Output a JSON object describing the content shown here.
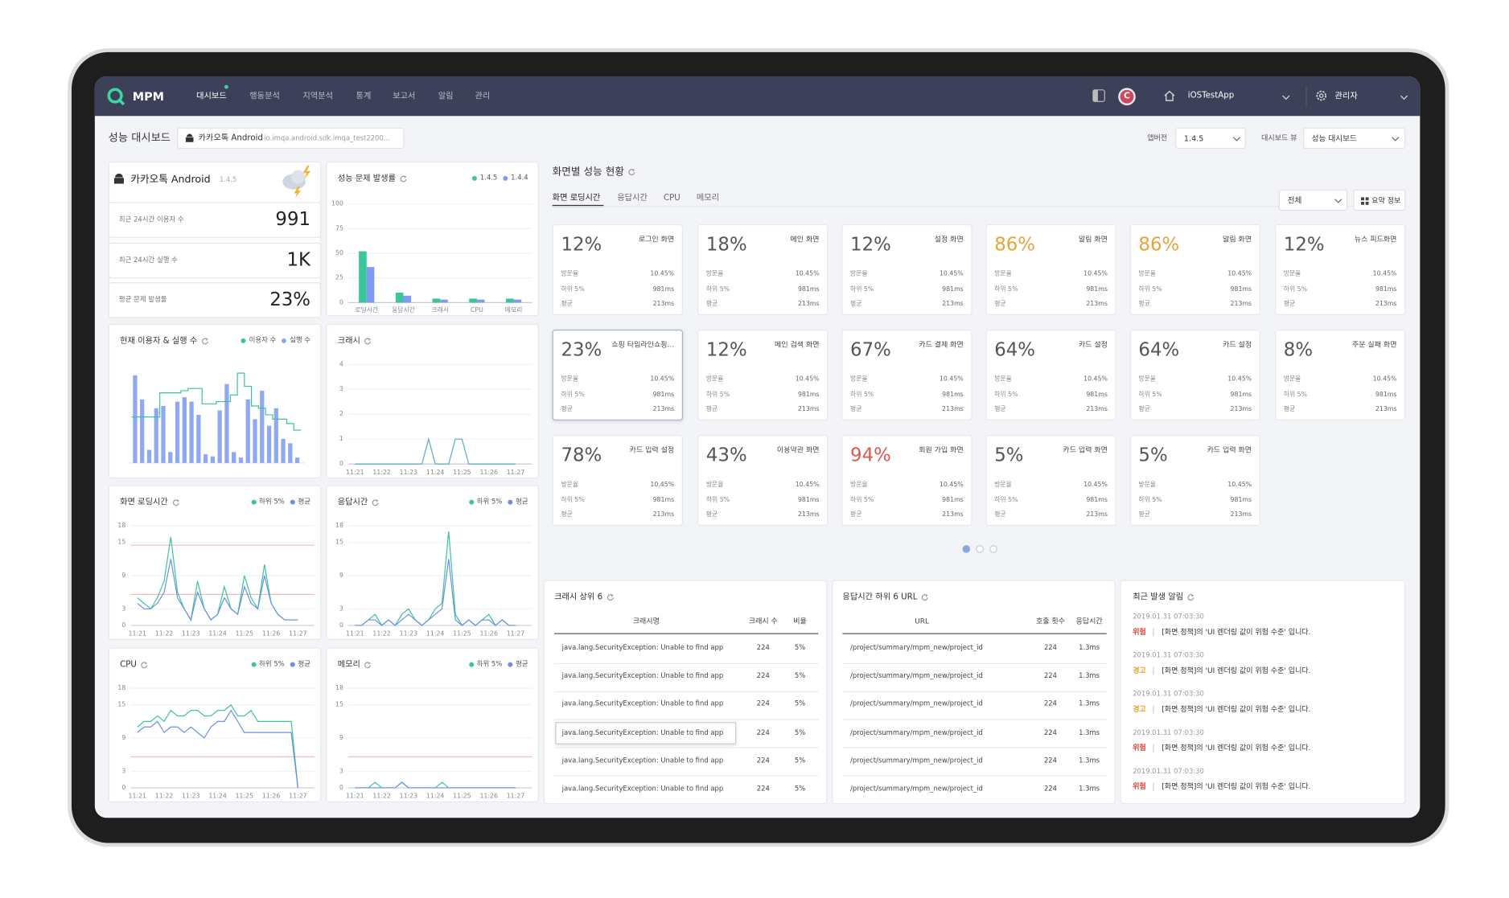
{
  "nav": {
    "logo": "MPM",
    "menu": [
      "대시보드",
      "행동분석",
      "지역분석",
      "통계",
      "보고서",
      "알림",
      "관리"
    ],
    "avatar": "C",
    "app": "iOSTestApp",
    "user": "관리자"
  },
  "header": {
    "title": "성능 대시보드",
    "app_chip": "카카오톡 Android",
    "package": "io.imqa.android.sdk.imqa_test2200...",
    "version_label": "앱버전",
    "version": "1.4.5",
    "view_label": "대시보드 뷰",
    "view": "성능 대시보드"
  },
  "summary": {
    "app": "카카오톡 Android",
    "version": "1.4.5",
    "stats": [
      {
        "label": "최근 24시간 이용자 수",
        "value": "991"
      },
      {
        "label": "최근 24시간 실행 수",
        "value": "1K"
      },
      {
        "label": "평균 문제 발생률",
        "value": "23%"
      }
    ]
  },
  "chart_data": [
    {
      "type": "bar",
      "title": "성능 문제 발생률",
      "categories": [
        "로딩시간",
        "응답시간",
        "크래시",
        "CPU",
        "메모리"
      ],
      "series": [
        {
          "name": "1.4.5",
          "color": "#3cc49a",
          "values": [
            52,
            10,
            4,
            4,
            4
          ]
        },
        {
          "name": "1.4.4",
          "color": "#7f9cf0",
          "values": [
            36,
            7,
            3,
            3,
            3
          ]
        }
      ],
      "ylim": [
        0,
        100
      ],
      "yticks": [
        0,
        25,
        50,
        75,
        100
      ],
      "grid": true
    },
    {
      "type": "combo",
      "title": "현재 이용자 & 실행 수",
      "series": [
        {
          "name": "이용자 수",
          "color": "#3cc49a",
          "kind": "line",
          "values": [
            42,
            42,
            42,
            42,
            64,
            64,
            64,
            66,
            68,
            68,
            54,
            54,
            56,
            56,
            62,
            82,
            70,
            52,
            50,
            44,
            40,
            40,
            36,
            30
          ]
        },
        {
          "name": "실행 수",
          "color": "#8fa8f2",
          "kind": "bar",
          "values": [
            80,
            58,
            12,
            50,
            52,
            10,
            56,
            60,
            56,
            44,
            8,
            6,
            48,
            72,
            10,
            5,
            58,
            40,
            66,
            34,
            50,
            22,
            18,
            5
          ]
        }
      ]
    },
    {
      "type": "line",
      "title": "크래시",
      "categories": [
        "11:21",
        null,
        null,
        null,
        "11:22",
        null,
        null,
        null,
        "11:23",
        null,
        null,
        null,
        "11:24",
        null,
        null,
        null,
        "11:25",
        null,
        null,
        null,
        "11:26",
        null,
        null,
        null,
        "11:27"
      ],
      "series": [
        {
          "color": "#5aa9c8",
          "values": [
            0,
            0,
            0,
            0,
            0,
            0,
            0,
            0,
            0,
            0,
            0,
            1,
            0,
            0,
            0,
            1,
            1,
            0,
            0,
            0,
            0,
            0,
            0,
            0,
            0
          ]
        }
      ],
      "ylim": [
        0,
        4
      ],
      "yticks": [
        0,
        1,
        2,
        3,
        4
      ]
    },
    {
      "type": "line",
      "title": "화면 로딩시간",
      "categories": [
        "11:21",
        null,
        null,
        null,
        "11:22",
        null,
        null,
        null,
        "11:23",
        null,
        null,
        null,
        "11:24",
        null,
        null,
        null,
        "11:25",
        null,
        null,
        null,
        "11:26",
        null,
        null,
        null,
        "11:27"
      ],
      "series": [
        {
          "name": "하위 5%",
          "color": "#3cc49a",
          "values": [
            5,
            4,
            3,
            5,
            8,
            16,
            6,
            3,
            1,
            8,
            3,
            1,
            2,
            7,
            3,
            2,
            9,
            5,
            3,
            11,
            4,
            2,
            1,
            1,
            1
          ]
        },
        {
          "name": "평균",
          "color": "#6b8fe8",
          "values": [
            4,
            3,
            3,
            4,
            6,
            12,
            5,
            3,
            1,
            6,
            3,
            1,
            2,
            5,
            3,
            2,
            7,
            4,
            3,
            9,
            4,
            2,
            1,
            1,
            1
          ]
        }
      ],
      "ylim": [
        0,
        18
      ],
      "yticks": [
        0,
        3,
        9,
        15,
        18
      ],
      "thresholds": [
        14.5,
        5.6
      ],
      "threshold_color": "#f7b8b8"
    },
    {
      "type": "line",
      "title": "응답시간",
      "categories": [
        "11:21",
        null,
        null,
        null,
        "11:22",
        null,
        null,
        null,
        "11:23",
        null,
        null,
        null,
        "11:24",
        null,
        null,
        null,
        "11:25",
        null,
        null,
        null,
        "11:26",
        null,
        null,
        null,
        "11:27"
      ],
      "series": [
        {
          "name": "하위 5%",
          "color": "#3cc49a",
          "values": [
            0,
            0,
            1,
            2,
            0,
            1,
            0,
            2,
            3,
            1,
            0,
            1,
            3,
            4,
            17,
            2,
            0,
            1,
            0,
            1,
            2,
            0,
            1,
            0,
            0
          ]
        },
        {
          "name": "평균",
          "color": "#6b8fe8",
          "values": [
            0,
            0,
            1,
            1,
            0,
            1,
            0,
            1,
            2,
            1,
            0,
            1,
            2,
            3,
            12,
            1,
            0,
            1,
            0,
            1,
            1,
            0,
            1,
            0,
            0
          ]
        }
      ],
      "ylim": [
        0,
        18
      ],
      "yticks": [
        0,
        3,
        9,
        15,
        18
      ]
    },
    {
      "type": "line",
      "title": "CPU",
      "categories": [
        "11:21",
        null,
        null,
        null,
        "11:22",
        null,
        null,
        null,
        "11:23",
        null,
        null,
        null,
        "11:24",
        null,
        null,
        null,
        "11:25",
        null,
        null,
        null,
        "11:26",
        null,
        null,
        null,
        "11:27"
      ],
      "series": [
        {
          "name": "하위 5%",
          "color": "#3cc49a",
          "values": [
            11,
            12,
            12,
            13,
            12,
            14,
            13,
            13,
            14,
            14,
            13,
            13,
            14,
            14,
            15,
            13,
            13,
            14,
            12,
            12,
            12,
            12,
            12,
            12,
            0
          ]
        },
        {
          "name": "평균",
          "color": "#6b8fe8",
          "values": [
            10,
            11,
            11,
            12,
            10,
            11,
            11,
            10,
            11,
            10,
            9,
            11,
            12,
            12,
            14,
            12,
            10,
            10,
            10,
            10,
            10,
            10,
            10,
            10,
            0
          ]
        }
      ],
      "ylim": [
        0,
        18
      ],
      "yticks": [
        0,
        3,
        9,
        15,
        18
      ],
      "thresholds": [
        5.6
      ],
      "threshold_color": "#f7b8b8"
    },
    {
      "type": "line",
      "title": "메모리",
      "categories": [
        "11:21",
        null,
        null,
        null,
        "11:22",
        null,
        null,
        null,
        "11:23",
        null,
        null,
        null,
        "11:24",
        null,
        null,
        null,
        "11:25",
        null,
        null,
        null,
        "11:26",
        null,
        null,
        null,
        "11:27"
      ],
      "series": [
        {
          "name": "하위 5%",
          "color": "#3cc49a",
          "values": [
            0,
            0,
            0,
            1,
            0,
            0,
            0,
            1,
            0,
            0,
            0,
            0,
            0,
            1,
            0,
            0,
            0,
            0,
            0,
            0,
            0,
            0,
            0,
            0,
            0
          ]
        },
        {
          "name": "평균",
          "color": "#6b8fe8",
          "values": [
            0,
            0,
            0,
            0,
            0,
            0,
            0,
            1,
            0,
            0,
            0,
            0,
            0,
            0,
            0,
            0,
            0,
            0,
            0,
            0,
            0,
            0,
            0,
            0,
            0
          ]
        }
      ],
      "ylim": [
        0,
        18
      ],
      "yticks": [
        0,
        3,
        9,
        15,
        18
      ],
      "thresholds": [
        5.6
      ],
      "threshold_color": "#f7b8b8"
    }
  ],
  "screens": {
    "title": "화면별 성능 현황",
    "tabs": [
      "화면 로딩시간",
      "응답시간",
      "CPU",
      "메모리"
    ],
    "filter": "전체",
    "summary_button": "요약 정보",
    "metric_labels": [
      "방문율",
      "하위 5%",
      "평균"
    ],
    "cards": [
      {
        "percent": "12%",
        "name": "로그인 화면",
        "color": "#555",
        "metrics": [
          "10.45%",
          "981ms",
          "213ms"
        ]
      },
      {
        "percent": "18%",
        "name": "메인 화면",
        "color": "#555",
        "metrics": [
          "10.45%",
          "981ms",
          "213ms"
        ]
      },
      {
        "percent": "12%",
        "name": "설정 화면",
        "color": "#555",
        "metrics": [
          "10.45%",
          "981ms",
          "213ms"
        ]
      },
      {
        "percent": "86%",
        "name": "알림 화면",
        "color": "#e8a33a",
        "metrics": [
          "10.45%",
          "981ms",
          "213ms"
        ]
      },
      {
        "percent": "86%",
        "name": "알림 화면",
        "color": "#e8a33a",
        "metrics": [
          "10.45%",
          "981ms",
          "213ms"
        ]
      },
      {
        "percent": "12%",
        "name": "뉴스 피드화면",
        "color": "#555",
        "metrics": [
          "10.45%",
          "981ms",
          "213ms"
        ]
      },
      {
        "percent": "23%",
        "name": "쇼핑 타임라인쇼핑...",
        "color": "#555",
        "selected": true,
        "metrics": [
          "10.45%",
          "981ms",
          "213ms"
        ]
      },
      {
        "percent": "12%",
        "name": "메인 검색 화면",
        "color": "#555",
        "metrics": [
          "10.45%",
          "981ms",
          "213ms"
        ]
      },
      {
        "percent": "67%",
        "name": "카드 결제 화면",
        "color": "#555",
        "metrics": [
          "10.45%",
          "981ms",
          "213ms"
        ]
      },
      {
        "percent": "64%",
        "name": "카드 설정",
        "color": "#555",
        "metrics": [
          "10.45%",
          "981ms",
          "213ms"
        ]
      },
      {
        "percent": "64%",
        "name": "카드 설정",
        "color": "#555",
        "metrics": [
          "10.45%",
          "981ms",
          "213ms"
        ]
      },
      {
        "percent": "8%",
        "name": "주문 실패 화면",
        "color": "#555",
        "metrics": [
          "10.45%",
          "981ms",
          "213ms"
        ]
      },
      {
        "percent": "78%",
        "name": "카드 입력 설정",
        "color": "#555",
        "metrics": [
          "10.45%",
          "981ms",
          "213ms"
        ]
      },
      {
        "percent": "43%",
        "name": "이용약관 화면",
        "color": "#555",
        "metrics": [
          "10.45%",
          "981ms",
          "213ms"
        ]
      },
      {
        "percent": "94%",
        "name": "회원 가입 화면",
        "color": "#e0574f",
        "metrics": [
          "10.45%",
          "981ms",
          "213ms"
        ]
      },
      {
        "percent": "5%",
        "name": "카드 입력 화면",
        "color": "#555",
        "metrics": [
          "10.45%",
          "981ms",
          "213ms"
        ]
      },
      {
        "percent": "5%",
        "name": "카드 입력 화면",
        "color": "#555",
        "metrics": [
          "10.45%",
          "981ms",
          "213ms"
        ]
      }
    ]
  },
  "crash_table": {
    "title": "크래시 상위 6",
    "columns": [
      "크래시명",
      "크래시 수",
      "비율"
    ],
    "rows": [
      [
        "java.lang.SecurityException: Unable to find app",
        "224",
        "5%"
      ],
      [
        "java.lang.SecurityException: Unable to find app",
        "224",
        "5%"
      ],
      [
        "java.lang.SecurityException: Unable to find app",
        "224",
        "5%"
      ],
      [
        "java.lang.SecurityException: Unable to find app",
        "224",
        "5%"
      ],
      [
        "java.lang.SecurityException: Unable to find app",
        "224",
        "5%"
      ],
      [
        "java.lang.SecurityException: Unable to find app",
        "224",
        "5%"
      ]
    ]
  },
  "url_table": {
    "title": "응답시간 하위 6 URL",
    "columns": [
      "URL",
      "호출 횟수",
      "응답시간"
    ],
    "rows": [
      [
        "/project/summary/mpm_new/project_id",
        "224",
        "1.3ms"
      ],
      [
        "/project/summary/mpm_new/project_id",
        "224",
        "1.3ms"
      ],
      [
        "/project/summary/mpm_new/project_id",
        "224",
        "1.3ms"
      ],
      [
        "/project/summary/mpm_new/project_id",
        "224",
        "1.3ms"
      ],
      [
        "/project/summary/mpm_new/project_id",
        "224",
        "1.3ms"
      ],
      [
        "/project/summary/mpm_new/project_id",
        "224",
        "1.3ms"
      ]
    ]
  },
  "alerts": {
    "title": "최근 발생 알림",
    "items": [
      {
        "time": "2019.01.31 07:03:30",
        "level": "위험",
        "level_color": "#e0443a",
        "message": "[화면 정책]의 'UI 렌더링 값이 위험 수준' 입니다."
      },
      {
        "time": "2019.01.31 07:03:30",
        "level": "경고",
        "level_color": "#e8a33a",
        "message": "[화면 정책]의 'UI 렌더링 값이 위험 수준' 입니다."
      },
      {
        "time": "2019.01.31 07:03:30",
        "level": "경고",
        "level_color": "#e8a33a",
        "message": "[화면 정책]의 'UI 렌더링 값이 위험 수준' 입니다."
      },
      {
        "time": "2019.01.31 07:03:30",
        "level": "위험",
        "level_color": "#e0443a",
        "message": "[화면 정책]의 'UI 렌더링 값이 위험 수준' 입니다."
      },
      {
        "time": "2019.01.31 07:03:30",
        "level": "위험",
        "level_color": "#e0443a",
        "message": "[화면 정책]의 'UI 렌더링 값이 위험 수준' 입니다."
      }
    ]
  }
}
